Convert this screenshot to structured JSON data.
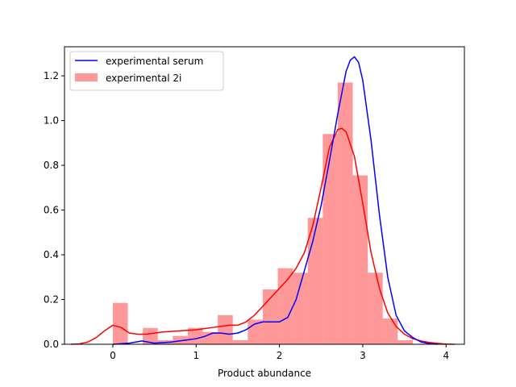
{
  "chart_data": {
    "type": "bar",
    "title": "",
    "xlabel": "Product abundance",
    "ylabel": "",
    "xlim": [
      -0.58,
      4.22
    ],
    "ylim": [
      0,
      1.33
    ],
    "xticks": [
      0,
      1,
      2,
      3,
      4
    ],
    "yticks": [
      0.0,
      0.2,
      0.4,
      0.6,
      0.8,
      1.0,
      1.2
    ],
    "xtick_labels": [
      "0",
      "1",
      "2",
      "3",
      "4"
    ],
    "ytick_labels": [
      "0.0",
      "0.2",
      "0.4",
      "0.6",
      "0.8",
      "1.0",
      "1.2"
    ],
    "grid": false,
    "legend_position": "upper left",
    "histogram": {
      "name": "experimental 2i",
      "color": "#ff0000",
      "alpha": 0.4,
      "bins": [
        {
          "x0": 0.0,
          "x1": 0.18,
          "value": 0.185
        },
        {
          "x0": 0.18,
          "x1": 0.36,
          "value": 0.0
        },
        {
          "x0": 0.36,
          "x1": 0.54,
          "value": 0.073
        },
        {
          "x0": 0.54,
          "x1": 0.72,
          "value": 0.018
        },
        {
          "x0": 0.72,
          "x1": 0.9,
          "value": 0.037
        },
        {
          "x0": 0.9,
          "x1": 1.08,
          "value": 0.073
        },
        {
          "x0": 1.08,
          "x1": 1.26,
          "value": 0.055
        },
        {
          "x0": 1.26,
          "x1": 1.44,
          "value": 0.13
        },
        {
          "x0": 1.44,
          "x1": 1.62,
          "value": 0.018
        },
        {
          "x0": 1.62,
          "x1": 1.8,
          "value": 0.11
        },
        {
          "x0": 1.8,
          "x1": 1.98,
          "value": 0.245
        },
        {
          "x0": 1.98,
          "x1": 2.16,
          "value": 0.34
        },
        {
          "x0": 2.16,
          "x1": 2.34,
          "value": 0.32
        },
        {
          "x0": 2.34,
          "x1": 2.52,
          "value": 0.565
        },
        {
          "x0": 2.52,
          "x1": 2.7,
          "value": 0.94
        },
        {
          "x0": 2.7,
          "x1": 2.88,
          "value": 1.17
        },
        {
          "x0": 2.88,
          "x1": 3.06,
          "value": 0.755
        },
        {
          "x0": 3.06,
          "x1": 3.24,
          "value": 0.32
        },
        {
          "x0": 3.24,
          "x1": 3.42,
          "value": 0.115
        },
        {
          "x0": 3.42,
          "x1": 3.6,
          "value": 0.018
        }
      ]
    },
    "series": [
      {
        "name": "experimental serum",
        "color": "#0000ff",
        "type": "line",
        "x": [
          0.0,
          0.2,
          0.35,
          0.5,
          0.7,
          0.9,
          1.0,
          1.1,
          1.2,
          1.3,
          1.4,
          1.5,
          1.6,
          1.7,
          1.8,
          1.9,
          2.0,
          2.1,
          2.2,
          2.3,
          2.4,
          2.5,
          2.6,
          2.7,
          2.8,
          2.85,
          2.9,
          2.95,
          3.0,
          3.1,
          3.2,
          3.3,
          3.4,
          3.5,
          3.6,
          3.7,
          3.8,
          3.9
        ],
        "y": [
          0.0,
          0.005,
          0.015,
          0.005,
          0.01,
          0.02,
          0.025,
          0.035,
          0.05,
          0.05,
          0.045,
          0.05,
          0.065,
          0.09,
          0.1,
          0.1,
          0.1,
          0.12,
          0.2,
          0.33,
          0.46,
          0.62,
          0.82,
          1.03,
          1.22,
          1.27,
          1.285,
          1.26,
          1.18,
          0.91,
          0.58,
          0.3,
          0.13,
          0.06,
          0.03,
          0.01,
          0.003,
          0.0
        ]
      },
      {
        "name": "experimental 2i (density)",
        "color": "#ff0000",
        "type": "line",
        "x": [
          -0.5,
          -0.4,
          -0.3,
          -0.2,
          -0.1,
          0.0,
          0.1,
          0.2,
          0.3,
          0.4,
          0.5,
          0.6,
          0.8,
          1.0,
          1.2,
          1.4,
          1.5,
          1.6,
          1.7,
          1.8,
          1.9,
          2.0,
          2.1,
          2.2,
          2.3,
          2.4,
          2.5,
          2.6,
          2.7,
          2.75,
          2.8,
          2.9,
          3.0,
          3.1,
          3.2,
          3.3,
          3.4,
          3.5,
          3.6,
          3.7,
          3.8,
          3.9,
          4.0,
          4.1
        ],
        "y": [
          0.0,
          0.002,
          0.01,
          0.03,
          0.06,
          0.085,
          0.075,
          0.05,
          0.045,
          0.045,
          0.05,
          0.055,
          0.06,
          0.065,
          0.075,
          0.085,
          0.085,
          0.1,
          0.13,
          0.17,
          0.21,
          0.25,
          0.29,
          0.34,
          0.41,
          0.53,
          0.7,
          0.88,
          0.96,
          0.965,
          0.95,
          0.84,
          0.63,
          0.41,
          0.25,
          0.14,
          0.08,
          0.045,
          0.025,
          0.015,
          0.008,
          0.004,
          0.001,
          0.0
        ]
      }
    ],
    "legend": [
      {
        "label": "experimental serum",
        "kind": "line",
        "color": "#0000ff"
      },
      {
        "label": "experimental 2i",
        "kind": "patch",
        "color": "#ff0000"
      }
    ]
  }
}
